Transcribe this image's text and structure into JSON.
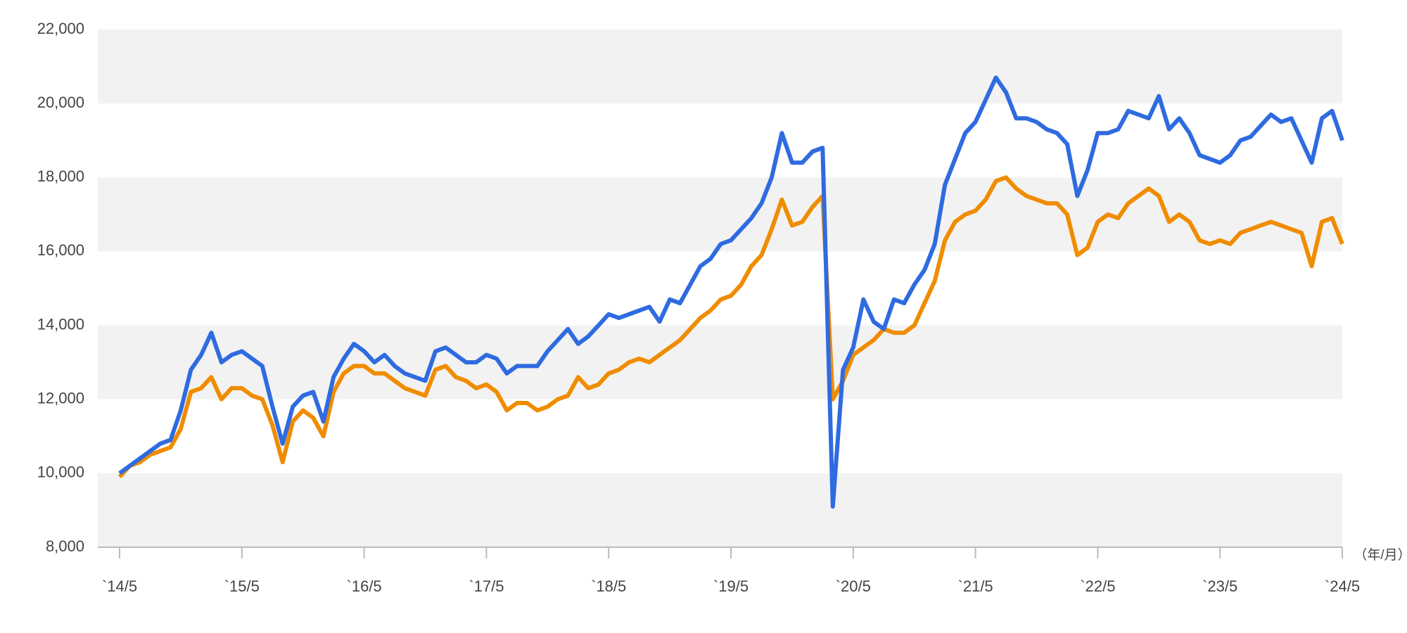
{
  "chart_data": {
    "type": "line",
    "x_label": "（年/月）",
    "x": [
      "2014-05",
      "2014-06",
      "2014-07",
      "2014-08",
      "2014-09",
      "2014-10",
      "2014-11",
      "2014-12",
      "2015-01",
      "2015-02",
      "2015-03",
      "2015-04",
      "2015-05",
      "2015-06",
      "2015-07",
      "2015-08",
      "2015-09",
      "2015-10",
      "2015-11",
      "2015-12",
      "2016-01",
      "2016-02",
      "2016-03",
      "2016-04",
      "2016-05",
      "2016-06",
      "2016-07",
      "2016-08",
      "2016-09",
      "2016-10",
      "2016-11",
      "2016-12",
      "2017-01",
      "2017-02",
      "2017-03",
      "2017-04",
      "2017-05",
      "2017-06",
      "2017-07",
      "2017-08",
      "2017-09",
      "2017-10",
      "2017-11",
      "2017-12",
      "2018-01",
      "2018-02",
      "2018-03",
      "2018-04",
      "2018-05",
      "2018-06",
      "2018-07",
      "2018-08",
      "2018-09",
      "2018-10",
      "2018-11",
      "2018-12",
      "2019-01",
      "2019-02",
      "2019-03",
      "2019-04",
      "2019-05",
      "2019-06",
      "2019-07",
      "2019-08",
      "2019-09",
      "2019-10",
      "2019-11",
      "2019-12",
      "2020-01",
      "2020-02",
      "2020-03",
      "2020-04",
      "2020-05",
      "2020-06",
      "2020-07",
      "2020-08",
      "2020-09",
      "2020-10",
      "2020-11",
      "2020-12",
      "2021-01",
      "2021-02",
      "2021-03",
      "2021-04",
      "2021-05",
      "2021-06",
      "2021-07",
      "2021-08",
      "2021-09",
      "2021-10",
      "2021-11",
      "2021-12",
      "2022-01",
      "2022-02",
      "2022-03",
      "2022-04",
      "2022-05",
      "2022-06",
      "2022-07",
      "2022-08",
      "2022-09",
      "2022-10",
      "2022-11",
      "2022-12",
      "2023-01",
      "2023-02",
      "2023-03",
      "2023-04",
      "2023-05",
      "2023-06",
      "2023-07",
      "2023-08",
      "2023-09",
      "2023-10",
      "2023-11",
      "2023-12",
      "2024-01",
      "2024-02",
      "2024-03",
      "2024-04",
      "2024-05"
    ],
    "series": [
      {
        "color": "#2f6be0",
        "values": [
          10000,
          10200,
          10400,
          10600,
          10800,
          10900,
          11700,
          12800,
          13200,
          13800,
          13000,
          13200,
          13300,
          13100,
          12900,
          11800,
          10800,
          11800,
          12100,
          12200,
          11400,
          12600,
          13100,
          13500,
          13300,
          13000,
          13200,
          12900,
          12700,
          12600,
          12500,
          13300,
          13400,
          13200,
          13000,
          13000,
          13200,
          13100,
          12700,
          12900,
          12900,
          12900,
          13300,
          13600,
          13900,
          13500,
          13700,
          14000,
          14300,
          14200,
          14300,
          14400,
          14500,
          14100,
          14700,
          14600,
          15100,
          15600,
          15800,
          16200,
          16300,
          16600,
          16900,
          17300,
          18000,
          19200,
          18400,
          18400,
          18700,
          18800,
          9100,
          12800,
          13400,
          14700,
          14100,
          13900,
          14700,
          14600,
          15100,
          15500,
          16200,
          17800,
          18500,
          19200,
          19500,
          20100,
          20700,
          20300,
          19600,
          19600,
          19500,
          19300,
          19200,
          18900,
          17500,
          18200,
          19200,
          19200,
          19300,
          19800,
          19700,
          19600,
          20200,
          19300,
          19600,
          19200,
          18600,
          18500,
          18400,
          18600,
          19000,
          19100,
          19400,
          19700,
          19500,
          19600,
          19000,
          18400,
          19600,
          19800,
          19000
        ]
      },
      {
        "color": "#f08c00",
        "values": [
          9900,
          10200,
          10300,
          10500,
          10600,
          10700,
          11200,
          12200,
          12300,
          12600,
          12000,
          12300,
          12300,
          12100,
          12000,
          11300,
          10300,
          11400,
          11700,
          11500,
          11000,
          12200,
          12700,
          12900,
          12900,
          12700,
          12700,
          12500,
          12300,
          12200,
          12100,
          12800,
          12900,
          12600,
          12500,
          12300,
          12400,
          12200,
          11700,
          11900,
          11900,
          11700,
          11800,
          12000,
          12100,
          12600,
          12300,
          12400,
          12700,
          12800,
          13000,
          13100,
          13000,
          13200,
          13400,
          13600,
          13900,
          14200,
          14400,
          14700,
          14800,
          15100,
          15600,
          15900,
          16600,
          17400,
          16700,
          16800,
          17200,
          17500,
          12000,
          12500,
          13200,
          13400,
          13600,
          13900,
          13800,
          13800,
          14000,
          14600,
          15200,
          16300,
          16800,
          17000,
          17100,
          17400,
          17900,
          18000,
          17700,
          17500,
          17400,
          17300,
          17300,
          17000,
          15900,
          16100,
          16800,
          17000,
          16900,
          17300,
          17500,
          17700,
          17500,
          16800,
          17000,
          16800,
          16300,
          16200,
          16300,
          16200,
          16500,
          16600,
          16700,
          16800,
          16700,
          16600,
          16500,
          15600,
          16800,
          16900,
          16200
        ]
      }
    ],
    "xlim": [
      "2014-05",
      "2024-05"
    ],
    "xticks": [
      {
        "value": "2014-05",
        "label": "`14/5"
      },
      {
        "value": "2015-05",
        "label": "`15/5"
      },
      {
        "value": "2016-05",
        "label": "`16/5"
      },
      {
        "value": "2017-05",
        "label": "`17/5"
      },
      {
        "value": "2018-05",
        "label": "`18/5"
      },
      {
        "value": "2019-05",
        "label": "`19/5"
      },
      {
        "value": "2020-05",
        "label": "`20/5"
      },
      {
        "value": "2021-05",
        "label": "`21/5"
      },
      {
        "value": "2022-05",
        "label": "`22/5"
      },
      {
        "value": "2023-05",
        "label": "`23/5"
      },
      {
        "value": "2024-05",
        "label": "`24/5"
      }
    ],
    "ylim": [
      8000,
      22000
    ],
    "yticks": [
      {
        "value": 8000,
        "label": "8,000"
      },
      {
        "value": 10000,
        "label": "10,000"
      },
      {
        "value": 12000,
        "label": "12,000"
      },
      {
        "value": 14000,
        "label": "14,000"
      },
      {
        "value": 16000,
        "label": "16,000"
      },
      {
        "value": 18000,
        "label": "18,000"
      },
      {
        "value": 20000,
        "label": "20,000"
      },
      {
        "value": 22000,
        "label": "22,000"
      }
    ],
    "grid": "bands",
    "band_color": "#f2f2f2"
  }
}
